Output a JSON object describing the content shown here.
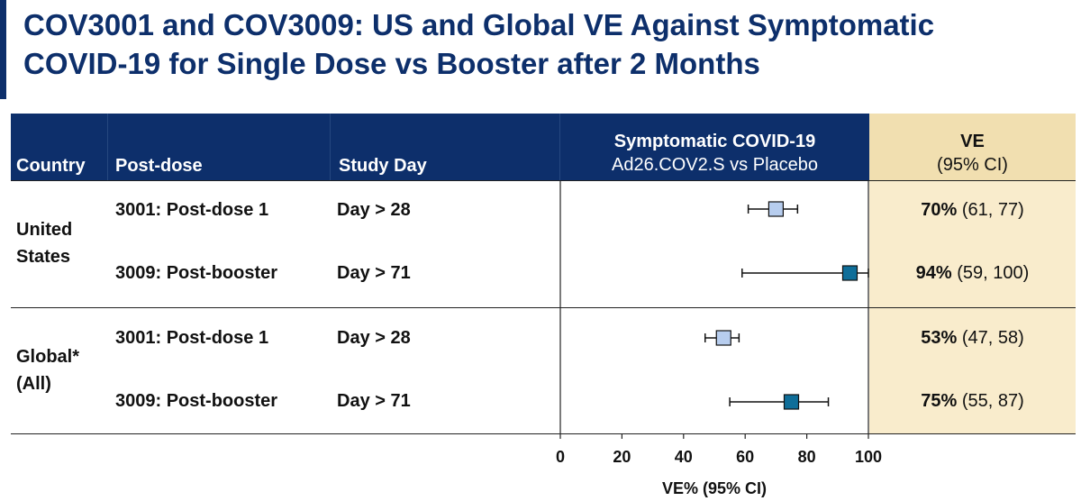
{
  "title_line1": "COV3001 and COV3009: US and Global VE Against Symptomatic",
  "title_line2": "COVID-19 for Single Dose vs Booster after 2 Months",
  "header": {
    "country": "Country",
    "post_dose": "Post-dose",
    "study_day": "Study Day",
    "outcome_line1": "Symptomatic COVID-19",
    "outcome_line2": "Ad26.COV2.S vs Placebo",
    "ve_line1": "VE",
    "ve_line2": "(95% CI)"
  },
  "groups": [
    {
      "country_line1": "United",
      "country_line2": "States"
    },
    {
      "country_line1": "Global*",
      "country_line2": "(All)"
    }
  ],
  "rows": [
    {
      "post_dose": "3001: Post-dose 1",
      "study_day": "Day > 28",
      "ve_pct": "70%",
      "ve_ci": "(61, 77)",
      "ve": 70,
      "lower": 61,
      "upper": 77,
      "marker": "light"
    },
    {
      "post_dose": "3009: Post-booster",
      "study_day": "Day > 71",
      "ve_pct": "94%",
      "ve_ci": "(59, 100)",
      "ve": 94,
      "lower": 59,
      "upper": 100,
      "marker": "dark"
    },
    {
      "post_dose": "3001: Post-dose 1",
      "study_day": "Day > 28",
      "ve_pct": "53%",
      "ve_ci": "(47, 58)",
      "ve": 53,
      "lower": 47,
      "upper": 58,
      "marker": "light"
    },
    {
      "post_dose": "3009: Post-booster",
      "study_day": "Day > 71",
      "ve_pct": "75%",
      "ve_ci": "(55, 87)",
      "ve": 75,
      "lower": 55,
      "upper": 87,
      "marker": "dark"
    }
  ],
  "colors": {
    "navy": "#0d2f6b",
    "marker_light": "#b7cdee",
    "marker_dark": "#0f6e99",
    "ve_column": "#f9eccc"
  },
  "chart_data": {
    "type": "scatter",
    "subtype": "forest-plot",
    "title": "Symptomatic COVID-19 Ad26.COV2.S vs Placebo",
    "xlabel": "VE% (95% CI)",
    "xlim": [
      0,
      100
    ],
    "xticks": [
      0,
      20,
      40,
      60,
      80,
      100
    ],
    "xtick_labels": [
      "0",
      "20",
      "40",
      "60",
      "80",
      "100"
    ],
    "series": [
      {
        "name": "3001: Post-dose 1 (United States)",
        "ve": 70,
        "ci": [
          61,
          77
        ]
      },
      {
        "name": "3009: Post-booster (United States)",
        "ve": 94,
        "ci": [
          59,
          100
        ]
      },
      {
        "name": "3001: Post-dose 1 (Global)",
        "ve": 53,
        "ci": [
          47,
          58
        ]
      },
      {
        "name": "3009: Post-booster (Global)",
        "ve": 75,
        "ci": [
          55,
          87
        ]
      }
    ]
  }
}
